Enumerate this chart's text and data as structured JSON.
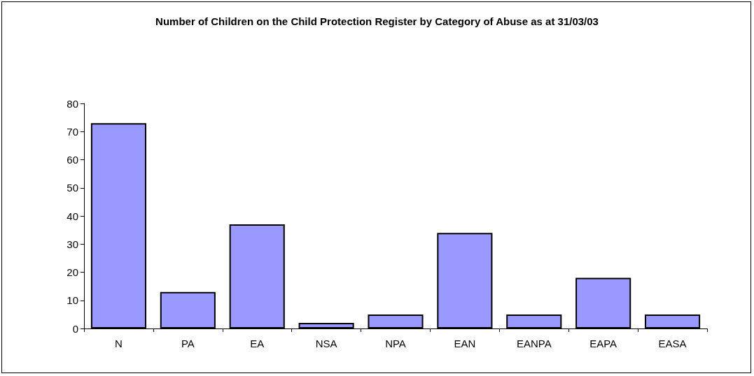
{
  "chart_data": {
    "type": "bar",
    "title": "Number of Children on the Child Protection Register by Category of Abuse as at 31/03/03",
    "categories": [
      "N",
      "PA",
      "EA",
      "NSA",
      "NPA",
      "EAN",
      "EANPA",
      "EAPA",
      "EASA"
    ],
    "values": [
      73,
      13,
      37,
      2,
      5,
      34,
      5,
      18,
      5
    ],
    "color": "#9999ff",
    "ylim": [
      0,
      80
    ],
    "yticks": [
      0,
      10,
      20,
      30,
      40,
      50,
      60,
      70,
      80
    ],
    "grid": false
  }
}
